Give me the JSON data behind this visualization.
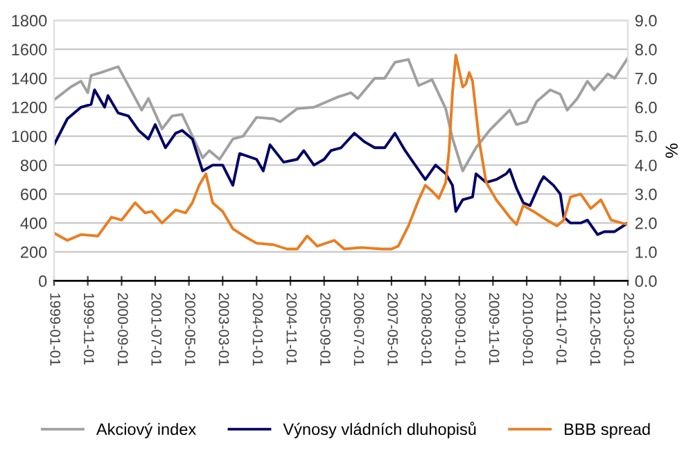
{
  "chart_data": {
    "type": "line",
    "ylabel": null,
    "y2label": "%",
    "xlim": [
      "1999-01-01",
      "2013-03-01"
    ],
    "xticks": [
      {
        "value": "1999-01-01",
        "label": "1999-01-01"
      },
      {
        "value": "1999-11-01",
        "label": "1999-11-01"
      },
      {
        "value": "2000-09-01",
        "label": "2000-09-01"
      },
      {
        "value": "2001-07-01",
        "label": "2001-07-01"
      },
      {
        "value": "2002-05-01",
        "label": "2002-05-01"
      },
      {
        "value": "2003-03-01",
        "label": "2003-03-01"
      },
      {
        "value": "2004-01-01",
        "label": "2004-01-01"
      },
      {
        "value": "2004-11-01",
        "label": "2004-11-01"
      },
      {
        "value": "2005-09-01",
        "label": "2005-09-01"
      },
      {
        "value": "2006-07-01",
        "label": "2006-07-01"
      },
      {
        "value": "2007-05-01",
        "label": "2007-05-01"
      },
      {
        "value": "2008-03-01",
        "label": "2008-03-01"
      },
      {
        "value": "2009-01-01",
        "label": "2009-01-01"
      },
      {
        "value": "2009-11-01",
        "label": "2009-11-01"
      },
      {
        "value": "2010-09-01",
        "label": "2010-09-01"
      },
      {
        "value": "2011-07-01",
        "label": "2011-07-01"
      },
      {
        "value": "2012-05-01",
        "label": "2012-05-01"
      },
      {
        "value": "2013-03-01",
        "label": "2013-03-01"
      }
    ],
    "ylim": [
      0,
      1800
    ],
    "yticks": [
      0,
      200,
      400,
      600,
      800,
      1000,
      1200,
      1400,
      1600,
      1800
    ],
    "y2lim": [
      0,
      9
    ],
    "y2ticks": [
      {
        "value": 0,
        "label": "0.0"
      },
      {
        "value": 1,
        "label": "1.0"
      },
      {
        "value": 2,
        "label": "2.0"
      },
      {
        "value": 3,
        "label": "3.0"
      },
      {
        "value": 4,
        "label": "4.0"
      },
      {
        "value": 5,
        "label": "5.0"
      },
      {
        "value": 6,
        "label": "6.0"
      },
      {
        "value": 7,
        "label": "7.0"
      },
      {
        "value": 8,
        "label": "8.0"
      },
      {
        "value": 9,
        "label": "9.0"
      }
    ],
    "grid": "y",
    "legend": "bottom",
    "marker": "none",
    "line_style": "solid",
    "series": [
      {
        "name": "Akciový index",
        "color": "#a0a0a0",
        "x": [
          "1999-01",
          "1999-06",
          "1999-09",
          "1999-11",
          "1999-12",
          "2000-03",
          "2000-08",
          "2000-11",
          "2001-03",
          "2001-05",
          "2001-09",
          "2001-12",
          "2002-03",
          "2002-06",
          "2002-09",
          "2002-11",
          "2003-02",
          "2003-06",
          "2003-09",
          "2004-01",
          "2004-06",
          "2004-08",
          "2005-01",
          "2005-06",
          "2005-09",
          "2006-01",
          "2006-05",
          "2006-07",
          "2006-12",
          "2007-03",
          "2007-06",
          "2007-10",
          "2008-01",
          "2008-05",
          "2008-09",
          "2008-11",
          "2009-02",
          "2009-06",
          "2009-10",
          "2010-04",
          "2010-06",
          "2010-09",
          "2010-12",
          "2011-04",
          "2011-07",
          "2011-09",
          "2011-12",
          "2012-03",
          "2012-05",
          "2012-09",
          "2012-11",
          "2013-03"
        ],
        "values": [
          1250,
          1340,
          1380,
          1300,
          1420,
          1440,
          1480,
          1350,
          1180,
          1260,
          1050,
          1140,
          1150,
          1000,
          850,
          900,
          840,
          980,
          1000,
          1130,
          1120,
          1100,
          1190,
          1200,
          1230,
          1270,
          1300,
          1260,
          1400,
          1400,
          1510,
          1530,
          1350,
          1390,
          1190,
          985,
          760,
          920,
          1040,
          1180,
          1080,
          1100,
          1240,
          1320,
          1290,
          1180,
          1260,
          1380,
          1320,
          1430,
          1400,
          1540
        ]
      },
      {
        "name": "Výnosy vládních dluhopisů",
        "color": "#000066",
        "axis": "y2",
        "x": [
          "1999-01",
          "1999-05",
          "1999-09",
          "1999-12",
          "2000-01",
          "2000-04",
          "2000-05",
          "2000-08",
          "2000-11",
          "2001-02",
          "2001-05",
          "2001-07",
          "2001-10",
          "2002-01",
          "2002-03",
          "2002-06",
          "2002-09",
          "2002-12",
          "2003-03",
          "2003-06",
          "2003-08",
          "2004-01",
          "2004-03",
          "2004-05",
          "2004-09",
          "2005-01",
          "2005-03",
          "2005-06",
          "2005-09",
          "2005-11",
          "2006-02",
          "2006-06",
          "2006-09",
          "2006-12",
          "2007-03",
          "2007-06",
          "2007-09",
          "2007-12",
          "2008-03",
          "2008-06",
          "2008-09",
          "2008-11",
          "2008-12",
          "2009-02",
          "2009-05",
          "2009-06",
          "2009-09",
          "2009-12",
          "2010-03",
          "2010-04",
          "2010-06",
          "2010-08",
          "2010-10",
          "2011-01",
          "2011-02",
          "2011-05",
          "2011-07",
          "2011-08",
          "2011-10",
          "2012-01",
          "2012-03",
          "2012-06",
          "2012-08",
          "2012-11",
          "2013-03"
        ],
        "values": [
          4.7,
          5.6,
          6.0,
          6.1,
          6.6,
          6.0,
          6.4,
          5.8,
          5.7,
          5.2,
          4.9,
          5.4,
          4.6,
          5.1,
          5.2,
          4.9,
          3.8,
          4.0,
          4.0,
          3.3,
          4.4,
          4.2,
          3.8,
          4.7,
          4.1,
          4.2,
          4.5,
          4.0,
          4.2,
          4.5,
          4.6,
          5.1,
          4.8,
          4.6,
          4.6,
          5.1,
          4.5,
          4.0,
          3.5,
          4.0,
          3.7,
          3.3,
          2.4,
          2.8,
          2.9,
          3.7,
          3.4,
          3.5,
          3.7,
          3.85,
          3.2,
          2.7,
          2.6,
          3.4,
          3.6,
          3.3,
          3.0,
          2.2,
          2.0,
          2.0,
          2.1,
          1.6,
          1.7,
          1.7,
          2.0
        ]
      },
      {
        "name": "BBB spread",
        "color": "#e87e22",
        "axis": "y2",
        "x": [
          "1999-01",
          "1999-05",
          "1999-09",
          "2000-02",
          "2000-06",
          "2000-09",
          "2001-01",
          "2001-04",
          "2001-06",
          "2001-09",
          "2002-01",
          "2002-04",
          "2002-06",
          "2002-08",
          "2002-10",
          "2002-12",
          "2003-03",
          "2003-06",
          "2003-10",
          "2004-01",
          "2004-06",
          "2004-10",
          "2005-01",
          "2005-04",
          "2005-07",
          "2005-12",
          "2006-03",
          "2006-08",
          "2007-02",
          "2007-05",
          "2007-07",
          "2007-10",
          "2008-01",
          "2008-03",
          "2008-05",
          "2008-07",
          "2008-09",
          "2008-10",
          "2008-11",
          "2008-12",
          "2009-02",
          "2009-03",
          "2009-04",
          "2009-05",
          "2009-07",
          "2009-09",
          "2009-12",
          "2010-04",
          "2010-06",
          "2010-08",
          "2010-11",
          "2011-03",
          "2011-06",
          "2011-08",
          "2011-10",
          "2012-01",
          "2012-04",
          "2012-07",
          "2012-10",
          "2013-01",
          "2013-03"
        ],
        "values": [
          1.65,
          1.4,
          1.6,
          1.55,
          2.2,
          2.1,
          2.7,
          2.35,
          2.4,
          2.0,
          2.45,
          2.35,
          2.7,
          3.3,
          3.7,
          2.7,
          2.4,
          1.8,
          1.5,
          1.3,
          1.25,
          1.1,
          1.1,
          1.55,
          1.2,
          1.4,
          1.1,
          1.15,
          1.1,
          1.1,
          1.2,
          1.9,
          2.8,
          3.3,
          3.1,
          2.85,
          3.4,
          4.5,
          6.5,
          7.8,
          6.7,
          6.8,
          7.2,
          6.9,
          4.8,
          3.4,
          2.8,
          2.2,
          1.95,
          2.6,
          2.4,
          2.1,
          1.9,
          2.1,
          2.9,
          3.0,
          2.5,
          2.8,
          2.1,
          2.0,
          1.95
        ]
      }
    ]
  }
}
